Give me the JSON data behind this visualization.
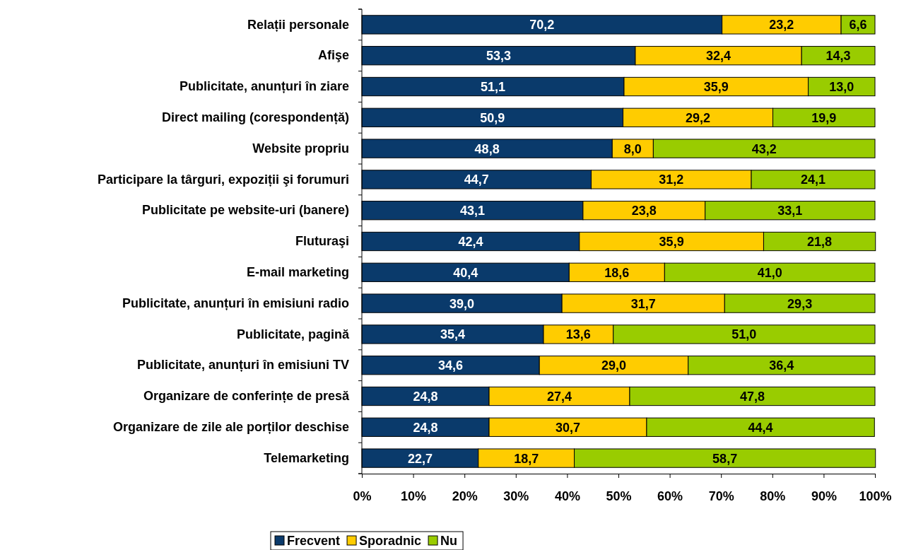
{
  "chart_data": {
    "type": "bar",
    "orientation": "horizontal",
    "stacked": true,
    "categories": [
      "Relații personale",
      "Afişe",
      "Publicitate, anunțuri în ziare",
      "Direct mailing (corespondență)",
      "Website propriu",
      "Participare la târguri, expoziții şi forumuri",
      "Publicitate pe website-uri (banere)",
      "Fluturaşi",
      "E-mail marketing",
      "Publicitate, anunțuri în emisiuni radio",
      "Publicitate, pagină",
      "Publicitate, anunțuri în emisiuni TV",
      "Organizare de conferințe de presă",
      "Organizare de zile ale porților deschise",
      "Telemarketing"
    ],
    "series": [
      {
        "name": "Frecvent",
        "color": "#0a3a6b",
        "values": [
          70.2,
          53.3,
          51.1,
          50.9,
          48.8,
          44.7,
          43.1,
          42.4,
          40.4,
          39.0,
          35.4,
          34.6,
          24.8,
          24.8,
          22.7
        ],
        "value_labels": [
          "70,2",
          "53,3",
          "51,1",
          "50,9",
          "48,8",
          "44,7",
          "43,1",
          "42,4",
          "40,4",
          "39,0",
          "35,4",
          "34,6",
          "24,8",
          "24,8",
          "22,7"
        ]
      },
      {
        "name": "Sporadnic",
        "color": "#ffcc00",
        "values": [
          23.2,
          32.4,
          35.9,
          29.2,
          8.0,
          31.2,
          23.8,
          35.9,
          18.6,
          31.7,
          13.6,
          29.0,
          27.4,
          30.7,
          18.7
        ],
        "value_labels": [
          "23,2",
          "32,4",
          "35,9",
          "29,2",
          "8,0",
          "31,2",
          "23,8",
          "35,9",
          "18,6",
          "31,7",
          "13,6",
          "29,0",
          "27,4",
          "30,7",
          "18,7"
        ]
      },
      {
        "name": "Nu",
        "color": "#99cc00",
        "values": [
          6.6,
          14.3,
          13.0,
          19.9,
          43.2,
          24.1,
          33.1,
          21.8,
          41.0,
          29.3,
          51.0,
          36.4,
          47.8,
          44.4,
          58.7
        ],
        "value_labels": [
          "6,6",
          "14,3",
          "13,0",
          "19,9",
          "43,2",
          "24,1",
          "33,1",
          "21,8",
          "41,0",
          "29,3",
          "51,0",
          "36,4",
          "47,8",
          "44,4",
          "58,7"
        ]
      }
    ],
    "xlim": [
      0,
      100
    ],
    "xticks": [
      {
        "value": 0,
        "label": "0%"
      },
      {
        "value": 10,
        "label": "10%"
      },
      {
        "value": 20,
        "label": "20%"
      },
      {
        "value": 30,
        "label": "30%"
      },
      {
        "value": 40,
        "label": "40%"
      },
      {
        "value": 50,
        "label": "50%"
      },
      {
        "value": 60,
        "label": "60%"
      },
      {
        "value": 70,
        "label": "70%"
      },
      {
        "value": 80,
        "label": "80%"
      },
      {
        "value": 90,
        "label": "90%"
      },
      {
        "value": 100,
        "label": "100%"
      }
    ],
    "grid": false,
    "legend": "bottom"
  }
}
